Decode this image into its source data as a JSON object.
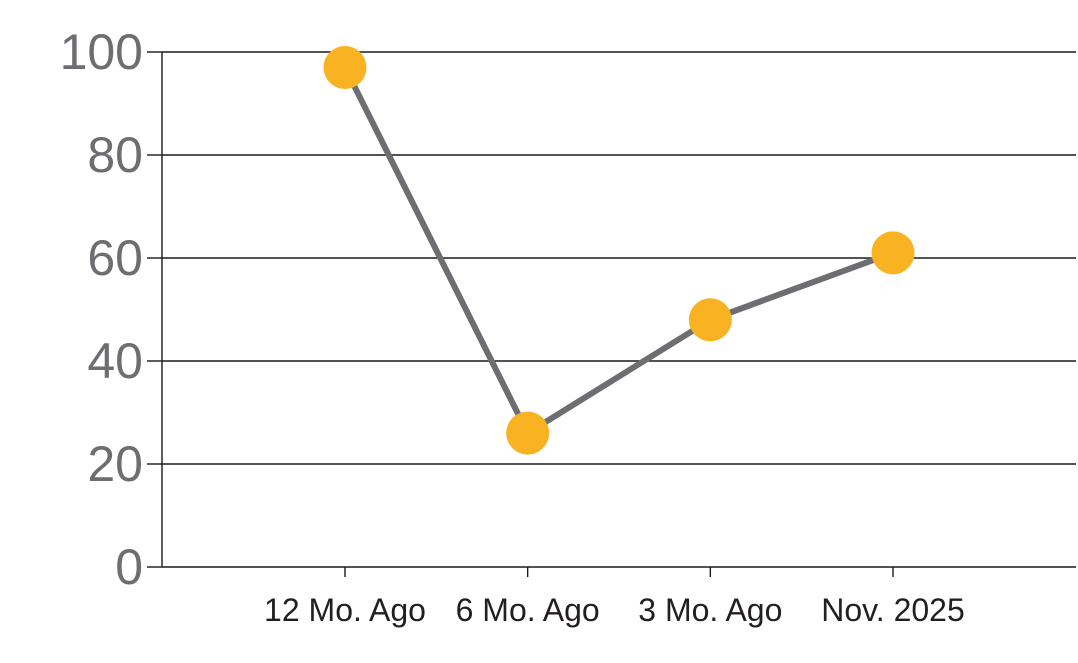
{
  "chart_data": {
    "type": "line",
    "categories": [
      "12 Mo. Ago",
      "6 Mo. Ago",
      "3 Mo. Ago",
      "Nov. 2025"
    ],
    "values": [
      97,
      26,
      48,
      61
    ],
    "yticks": [
      0,
      20,
      40,
      60,
      80,
      100
    ],
    "ylim": [
      0,
      100
    ],
    "grid": true,
    "gridlines": "horizontal-full-width",
    "legend": "none",
    "marker_shape": "circle",
    "colors": {
      "marker": "#F9B221",
      "line": "#6D6E71",
      "gridline": "#1A1A1A",
      "axis": "#1A1A1A",
      "y_tick_label": "#6D6E71",
      "x_tick_label": "#231F20",
      "background": "#FFFFFF"
    }
  }
}
